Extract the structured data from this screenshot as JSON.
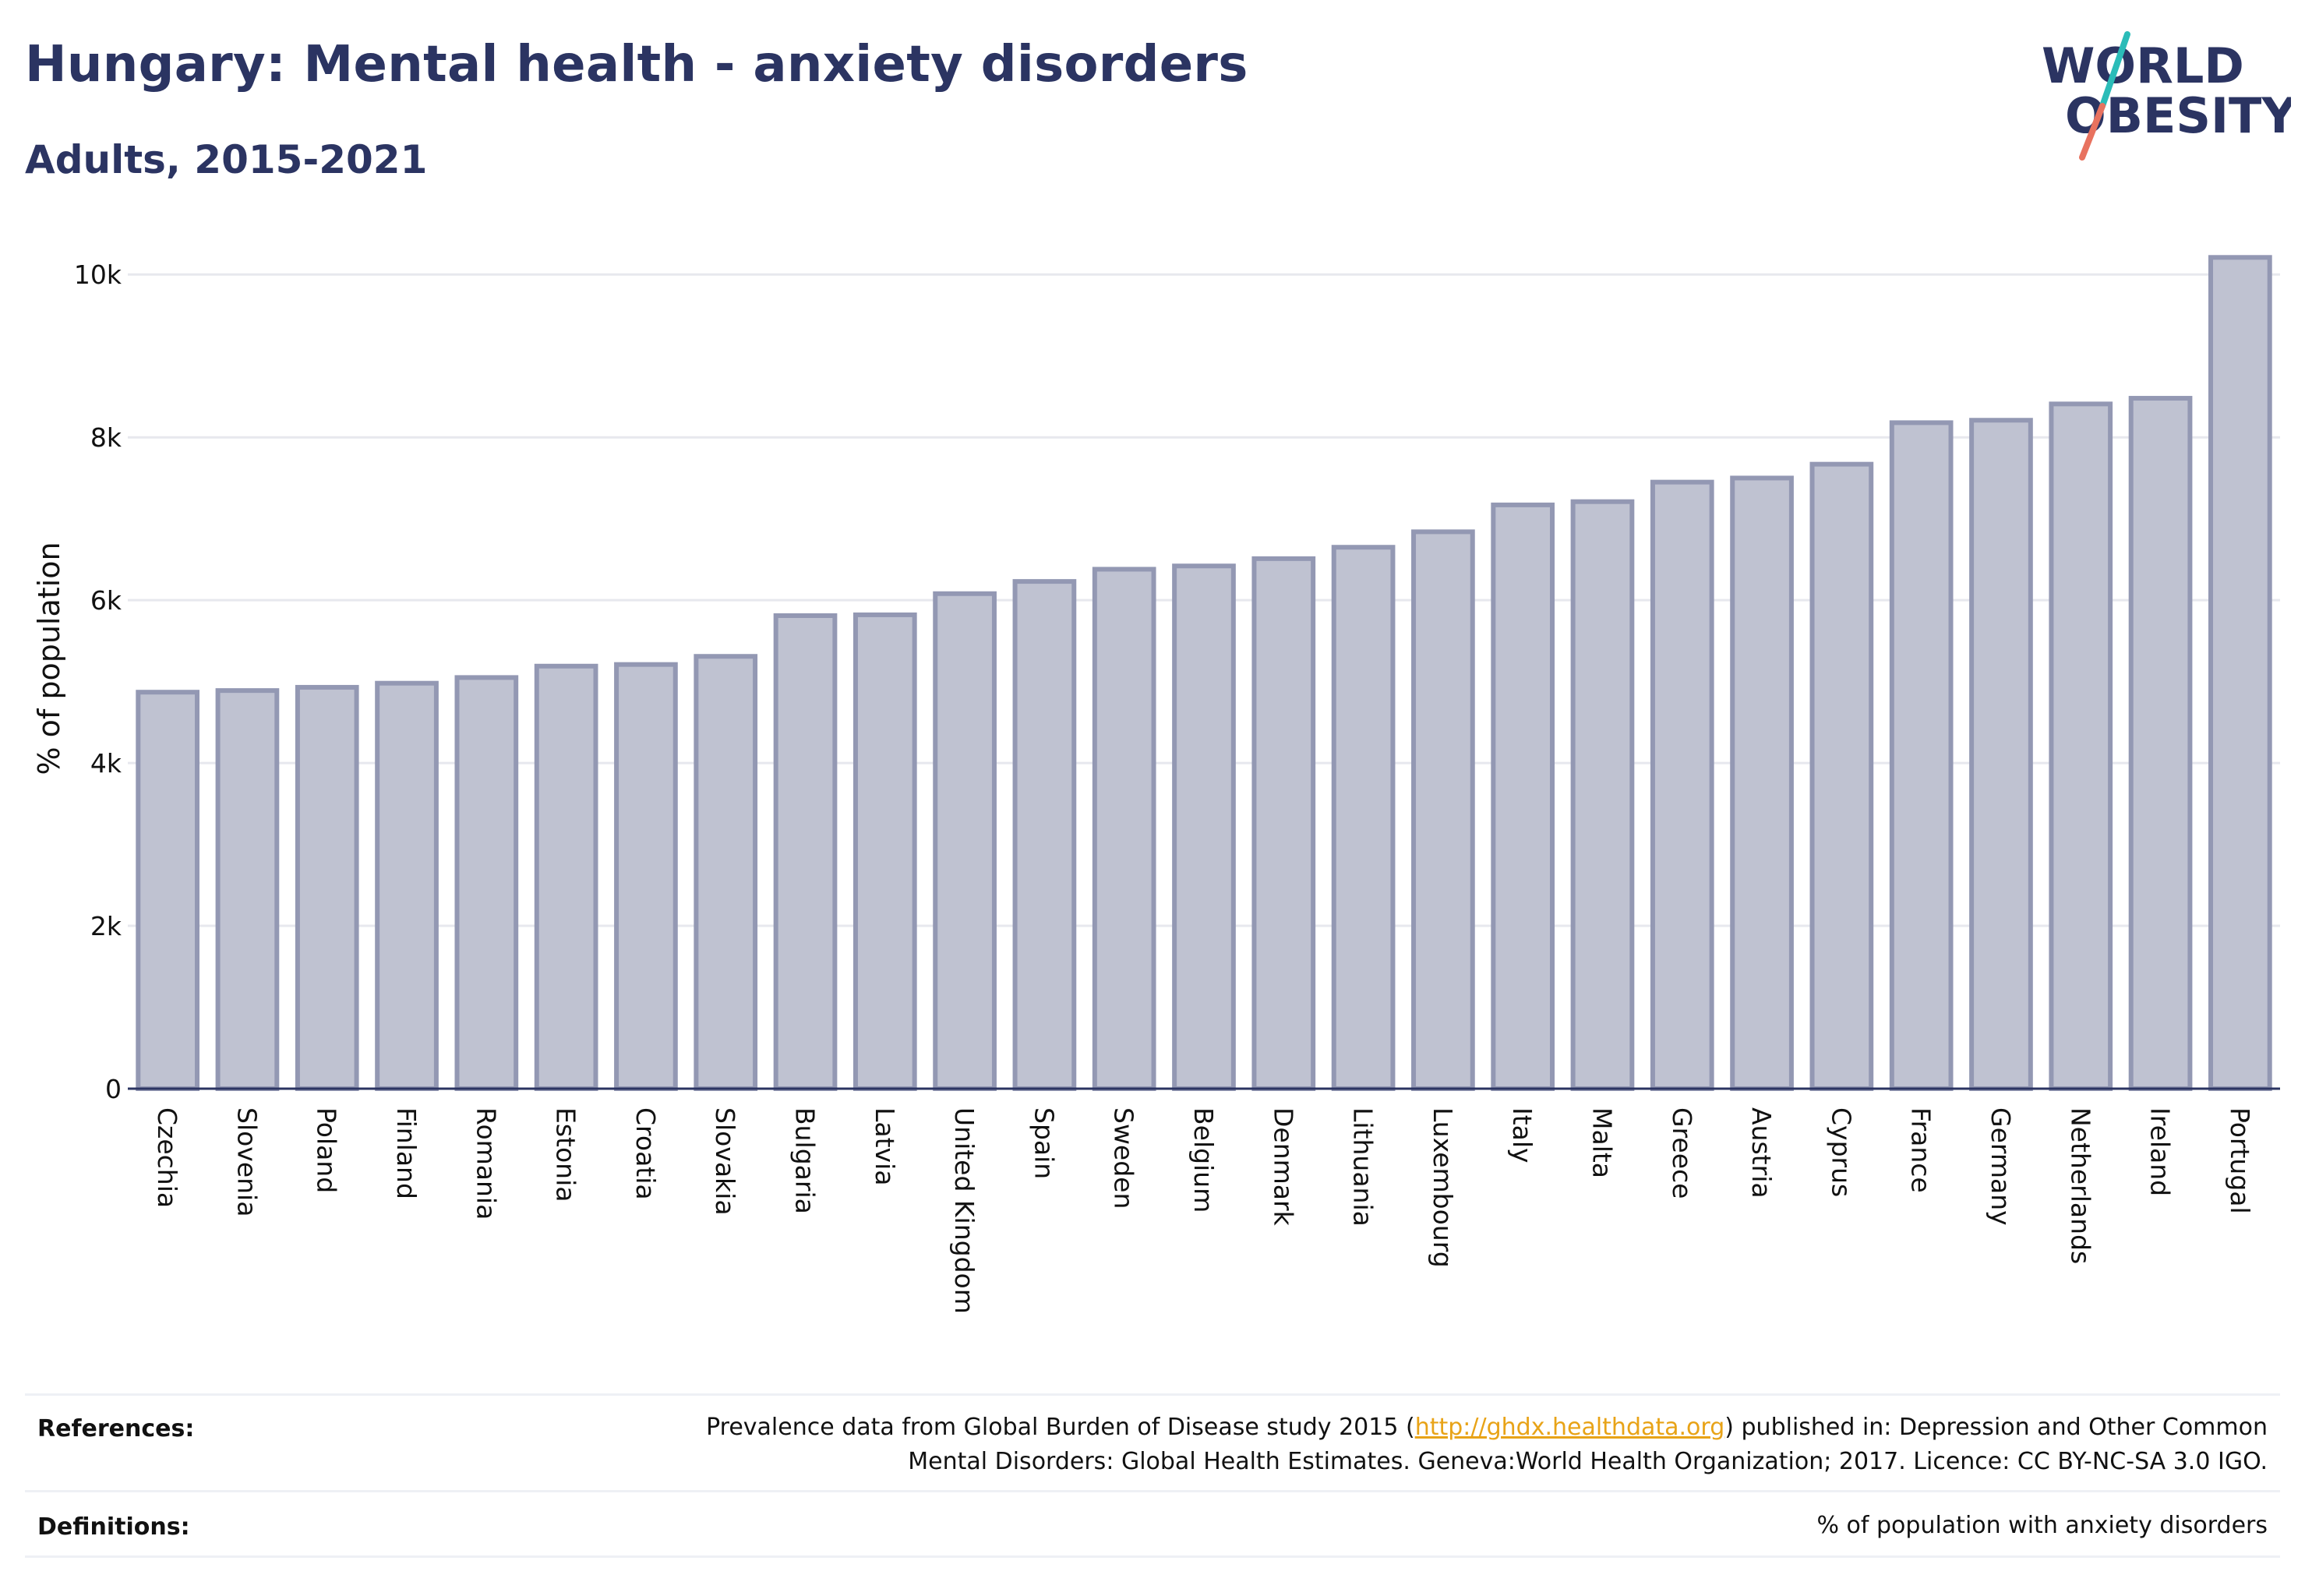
{
  "header": {
    "title": "Hungary: Mental health - anxiety disorders",
    "subtitle": "Adults, 2015-2021"
  },
  "logo": {
    "line1": "WORLD",
    "line2": "OBESITY",
    "colors": {
      "text": "#2b3462",
      "slash_top": "#2bbcb8",
      "slash_bottom": "#e8725f"
    }
  },
  "chart_data": {
    "type": "bar",
    "categories": [
      "Czechia",
      "Slovenia",
      "Poland",
      "Finland",
      "Romania",
      "Estonia",
      "Croatia",
      "Slovakia",
      "Bulgaria",
      "Latvia",
      "United Kingdom",
      "Spain",
      "Sweden",
      "Belgium",
      "Denmark",
      "Lithuania",
      "Luxembourg",
      "Italy",
      "Malta",
      "Greece",
      "Austria",
      "Cyprus",
      "France",
      "Germany",
      "Netherlands",
      "Ireland",
      "Portugal"
    ],
    "values": [
      4870,
      4890,
      4930,
      4980,
      5050,
      5190,
      5210,
      5310,
      5810,
      5820,
      6080,
      6230,
      6380,
      6420,
      6510,
      6650,
      6840,
      7170,
      7210,
      7450,
      7500,
      7670,
      8180,
      8210,
      8410,
      8480,
      10210
    ],
    "title": "Hungary: Mental health - anxiety disorders",
    "subtitle": "Adults, 2015-2021",
    "xlabel": "",
    "ylabel": "% of population",
    "ylim": [
      0,
      10500
    ],
    "yticks": [
      0,
      2000,
      4000,
      6000,
      8000,
      10000
    ],
    "ytick_labels": [
      "0",
      "2k",
      "4k",
      "6k",
      "8k",
      "10k"
    ],
    "grid": true,
    "colors": {
      "bar_fill": "#bfc2d1",
      "bar_stroke": "#9398b3",
      "grid": "#e7e8ee",
      "axis": "#2b3462"
    }
  },
  "footer": {
    "references_label": "References:",
    "references_text_before": "Prevalence data from Global Burden of Disease study 2015 (",
    "references_link": "http://ghdx.healthdata.org",
    "references_text_after": ") published in: Depression and Other Common",
    "references_text_line2": "Mental Disorders: Global Health Estimates. Geneva:World Health Organization; 2017. Licence: CC BY-NC-SA 3.0 IGO.",
    "definitions_label": "Definitions:",
    "definitions_text": "% of population with anxiety disorders"
  }
}
